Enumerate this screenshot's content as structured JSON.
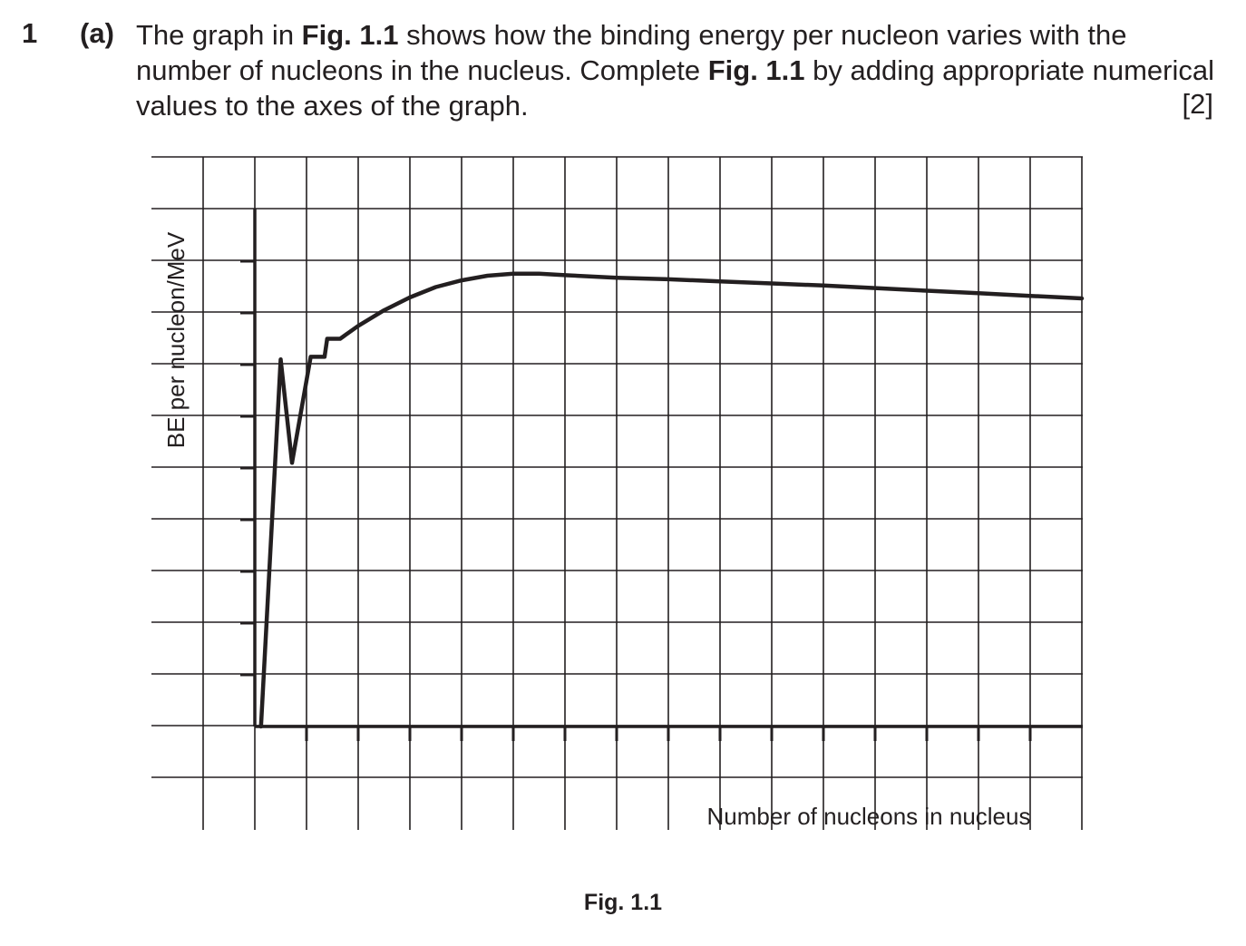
{
  "question": {
    "number": "1",
    "part": "(a)",
    "text_1": "The graph in ",
    "fig_ref_1": "Fig. 1.1",
    "text_2": " shows how the binding energy per nucleon varies with the number of nucleons in the nucleus. Complete ",
    "fig_ref_2": "Fig. 1.1",
    "text_3": " by adding appropriate numerical values to the axes of the graph.",
    "marks": "[2]"
  },
  "chart_data": {
    "type": "line",
    "title": "",
    "xlabel": "Number of nucleons in nucleus",
    "ylabel": "BE per nucleon/MeV",
    "x_tick_labels": [],
    "y_tick_labels": [],
    "grid": true,
    "x_units": "grid divisions from y-axis",
    "y_units": "grid divisions from x-axis",
    "xlim": [
      -2,
      16
    ],
    "ylim": [
      -2,
      11
    ],
    "series": [
      {
        "points": [
          [
            0.12,
            0
          ],
          [
            0.5,
            7.1
          ],
          [
            0.72,
            5.1
          ],
          [
            1.08,
            7.15
          ],
          [
            1.35,
            7.15
          ],
          [
            1.4,
            7.5
          ],
          [
            1.65,
            7.5
          ],
          [
            2.0,
            7.75
          ],
          [
            2.5,
            8.05
          ],
          [
            3.0,
            8.3
          ],
          [
            3.5,
            8.5
          ],
          [
            4.0,
            8.63
          ],
          [
            4.5,
            8.72
          ],
          [
            5.0,
            8.76
          ],
          [
            5.5,
            8.76
          ],
          [
            6.0,
            8.73
          ],
          [
            7.0,
            8.68
          ],
          [
            8.0,
            8.65
          ],
          [
            9.0,
            8.61
          ],
          [
            10.0,
            8.57
          ],
          [
            11.0,
            8.53
          ],
          [
            12.0,
            8.48
          ],
          [
            13.0,
            8.43
          ],
          [
            14.0,
            8.38
          ],
          [
            15.0,
            8.33
          ],
          [
            16.0,
            8.28
          ]
        ]
      }
    ]
  },
  "figure": {
    "caption": "Fig. 1.1"
  }
}
